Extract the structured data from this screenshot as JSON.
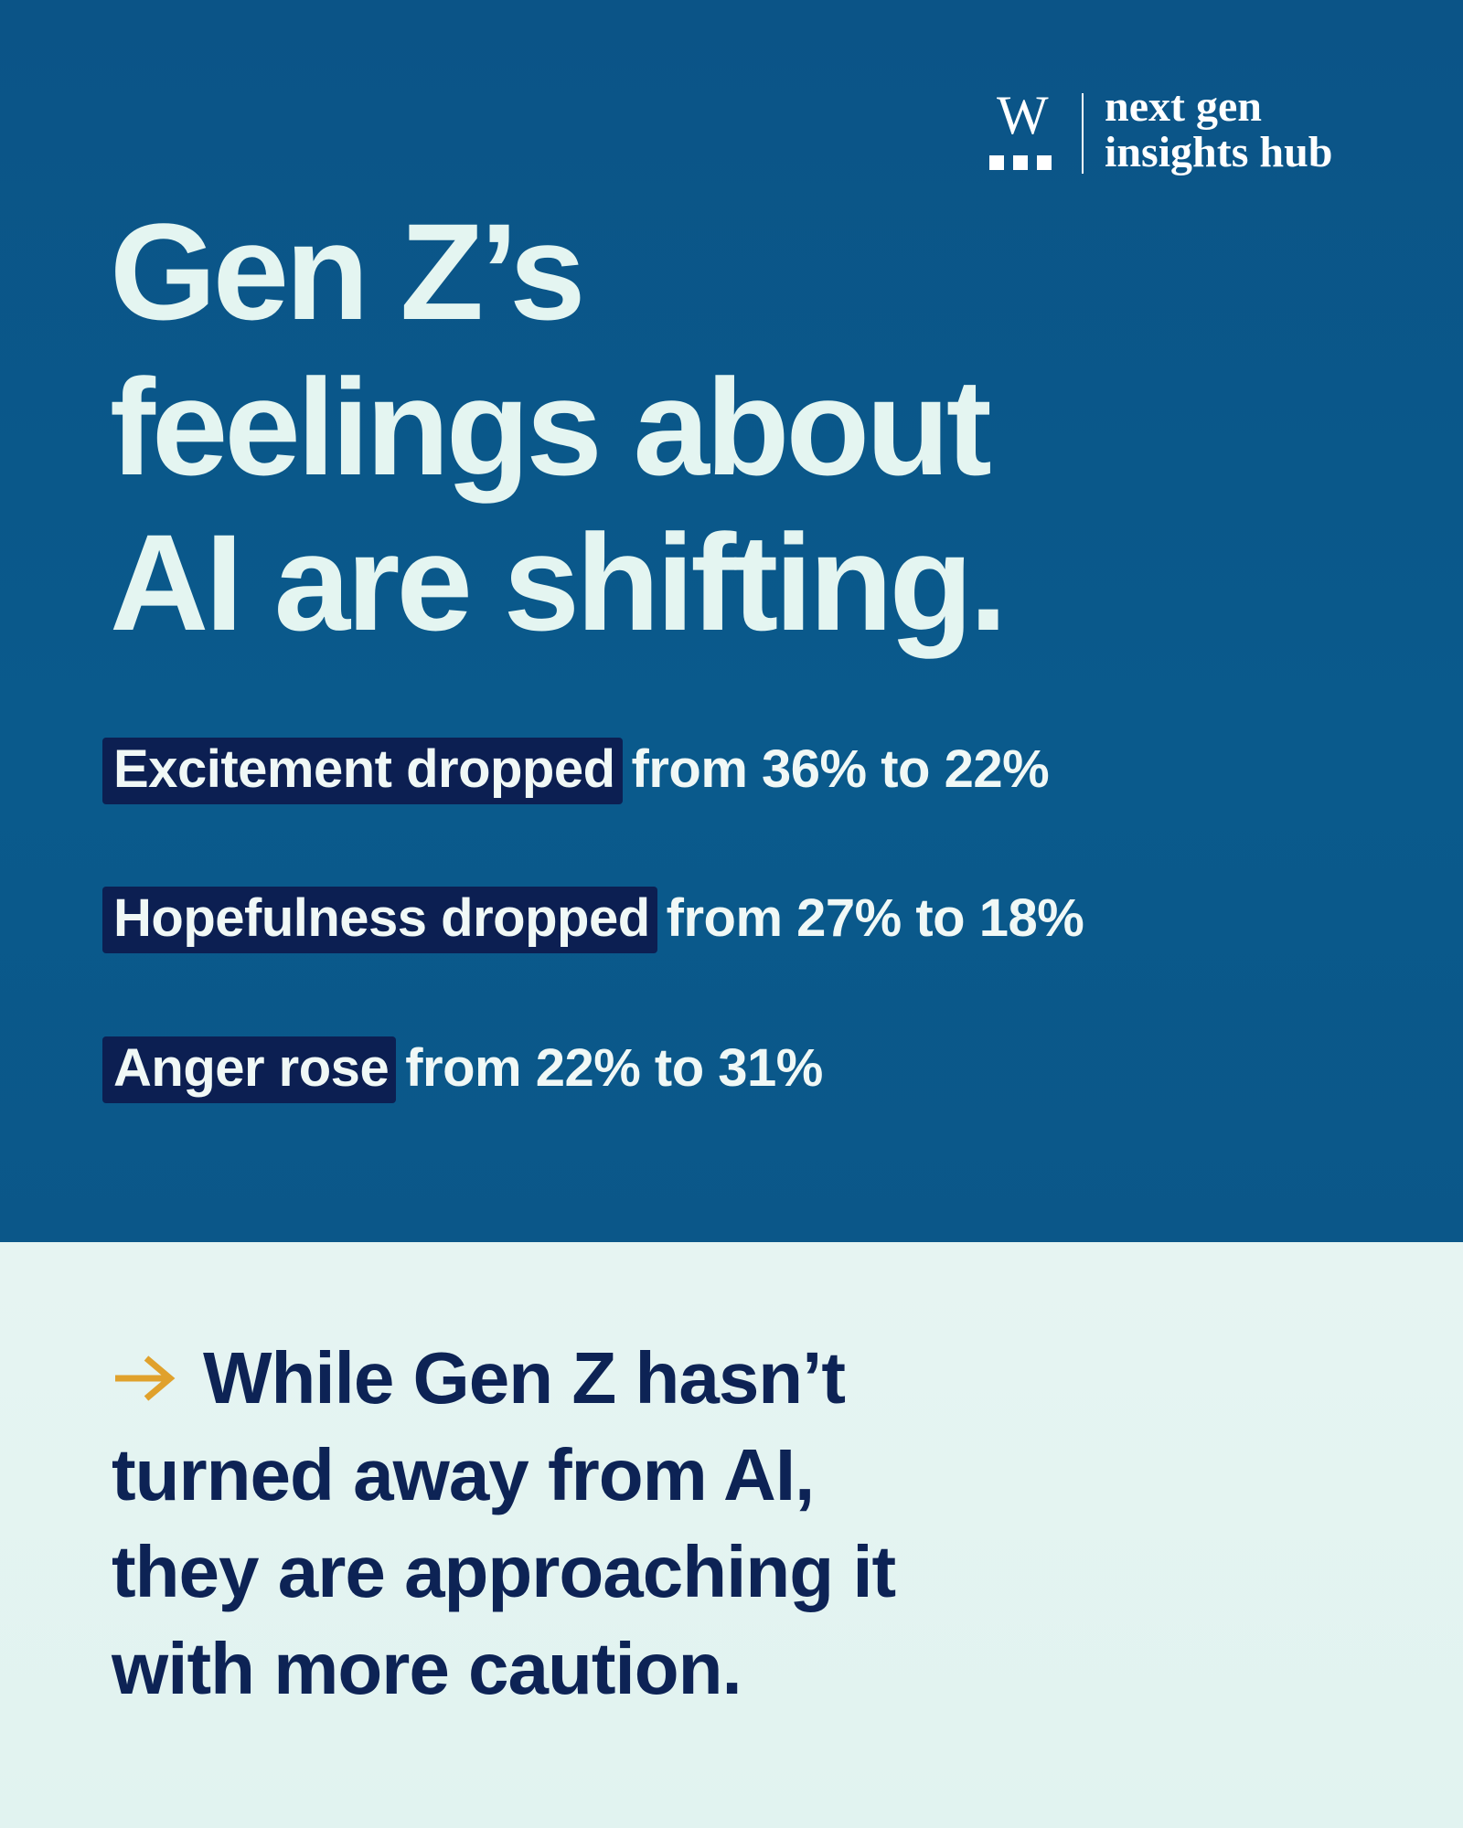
{
  "logo": {
    "letter": "W",
    "lines": [
      "next gen",
      "insights hub"
    ]
  },
  "title": {
    "lines": [
      "Gen Z’s",
      "feelings about",
      "AI are shifting."
    ]
  },
  "stats": [
    {
      "highlight": "Excitement dropped",
      "text": "from 36% to 22%"
    },
    {
      "highlight": "Hopefulness dropped",
      "text": "from 27% to 18%"
    },
    {
      "highlight": "Anger rose",
      "text": "from 22% to 31%"
    }
  ],
  "callout": {
    "lines": [
      "While Gen Z hasn’t",
      "turned away from AI,",
      "they are approaching it",
      "with more caution."
    ]
  }
}
